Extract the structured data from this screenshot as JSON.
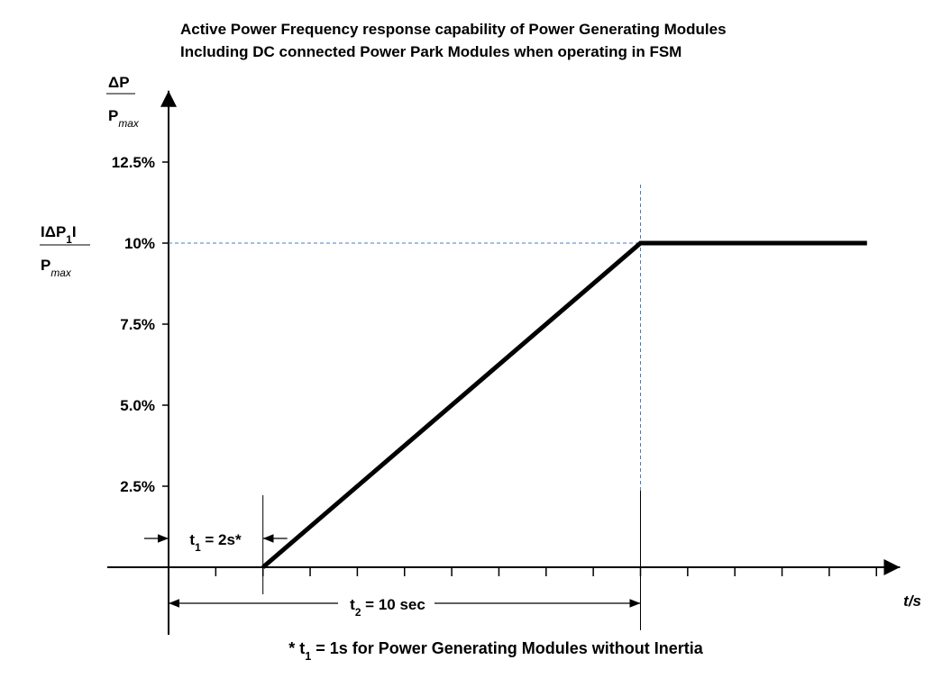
{
  "chart_data": {
    "type": "line",
    "title": [
      "Active Power Frequency response capability of Power Generating Modules",
      "Including DC connected Power Park Modules when operating in FSM"
    ],
    "y_label": {
      "numerator": "ΔP",
      "denominator": {
        "main": "P",
        "sub": "max"
      }
    },
    "x_label": "t/s",
    "annotations": {
      "delta_p1": {
        "numerator": {
          "pre": "IΔP",
          "sub": "1",
          "post": "I"
        },
        "denominator": {
          "main": "P",
          "sub": "max"
        }
      },
      "t1": {
        "main": "t",
        "sub": "1",
        "rest": " = 2s*"
      },
      "t2": {
        "main": "t",
        "sub": "2",
        "rest": " = 10 sec"
      },
      "footnote": {
        "main": "* t",
        "sub": "1",
        "rest": " = 1s for Power Generating Modules without Inertia"
      }
    },
    "x": [
      2,
      10,
      14.8
    ],
    "values": [
      0,
      10,
      10
    ],
    "color": "#000000",
    "xlim": [
      -1.3,
      15.5
    ],
    "ylim": [
      0,
      14.7
    ],
    "xticks": [
      0,
      1,
      2,
      3,
      4,
      5,
      6,
      7,
      8,
      9,
      10,
      11,
      12,
      13,
      14,
      15
    ],
    "yticks": [
      {
        "value": 2.5,
        "label": "2.5%"
      },
      {
        "value": 5.0,
        "label": "5.0%"
      },
      {
        "value": 7.5,
        "label": "7.5%"
      },
      {
        "value": 10,
        "label": "10%"
      },
      {
        "value": 12.5,
        "label": "12.5%"
      }
    ],
    "grid": false
  }
}
